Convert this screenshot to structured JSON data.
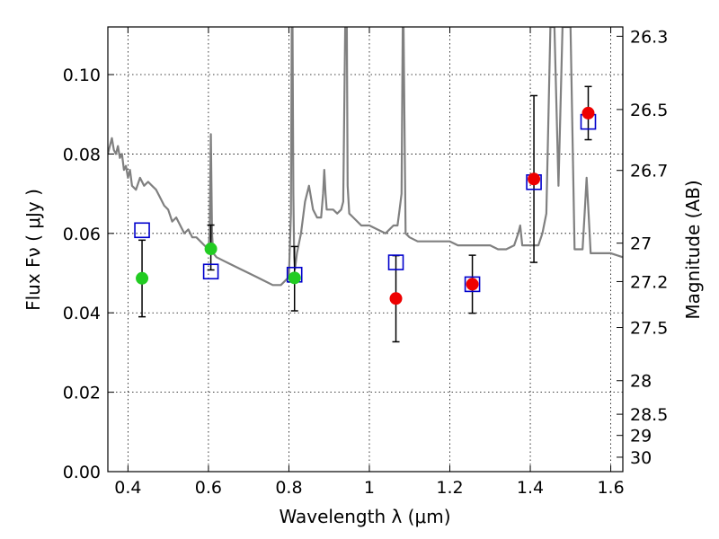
{
  "chart_data": {
    "type": "scatter",
    "xlabel": "Wavelength  λ (μm)",
    "ylabel": "Flux  Fν  ( μJy )",
    "y2label": "Magnitude (AB)",
    "xlim": [
      0.35,
      1.63
    ],
    "ylim": [
      0.0,
      0.112
    ],
    "x_ticks": [
      "0.4",
      "0.6",
      "0.8",
      "1",
      "1.2",
      "1.4",
      "1.6"
    ],
    "x_tick_values": [
      0.4,
      0.6,
      0.8,
      1.0,
      1.2,
      1.4,
      1.6
    ],
    "y_ticks": [
      "0.00",
      "0.02",
      "0.04",
      "0.06",
      "0.08",
      "0.10"
    ],
    "y_tick_values": [
      0.0,
      0.02,
      0.04,
      0.06,
      0.08,
      0.1
    ],
    "mag_ticks": [
      "26.3",
      "26.5",
      "26.7",
      "27",
      "27.2",
      "27.5",
      "28",
      "28.5",
      "29",
      "30"
    ],
    "mag_values": [
      26.3,
      26.5,
      26.7,
      27.0,
      27.2,
      27.5,
      28.0,
      28.5,
      29.0,
      30.0
    ],
    "grid": true,
    "colors": {
      "green": "#22cc22",
      "red": "#ee0000",
      "blue": "#0000cc",
      "spectrum": "#808080"
    },
    "points_green": [
      {
        "x": 0.435,
        "y": 0.0487,
        "lo": 0.039,
        "hi": 0.0583
      },
      {
        "x": 0.606,
        "y": 0.0561,
        "lo": 0.0508,
        "hi": 0.0621
      },
      {
        "x": 0.814,
        "y": 0.0488,
        "lo": 0.0405,
        "hi": 0.0567
      }
    ],
    "points_red": [
      {
        "x": 1.066,
        "y": 0.0436,
        "lo": 0.0327,
        "hi": 0.0544
      },
      {
        "x": 1.256,
        "y": 0.0472,
        "lo": 0.0399,
        "hi": 0.0545
      },
      {
        "x": 1.409,
        "y": 0.0737,
        "lo": 0.0527,
        "hi": 0.0947
      },
      {
        "x": 1.544,
        "y": 0.0903,
        "lo": 0.0836,
        "hi": 0.097
      }
    ],
    "model_squares": [
      {
        "x": 0.435,
        "y": 0.0608
      },
      {
        "x": 0.606,
        "y": 0.0504
      },
      {
        "x": 0.814,
        "y": 0.0496
      },
      {
        "x": 1.066,
        "y": 0.0527
      },
      {
        "x": 1.256,
        "y": 0.0472
      },
      {
        "x": 1.409,
        "y": 0.0729
      },
      {
        "x": 1.544,
        "y": 0.0881
      }
    ],
    "spectrum": {
      "x": [
        0.35,
        0.355,
        0.36,
        0.365,
        0.37,
        0.375,
        0.38,
        0.385,
        0.39,
        0.395,
        0.4,
        0.405,
        0.41,
        0.42,
        0.43,
        0.44,
        0.45,
        0.46,
        0.47,
        0.48,
        0.49,
        0.5,
        0.51,
        0.52,
        0.53,
        0.54,
        0.55,
        0.56,
        0.57,
        0.58,
        0.59,
        0.6,
        0.603,
        0.606,
        0.609,
        0.612,
        0.62,
        0.64,
        0.66,
        0.68,
        0.7,
        0.72,
        0.74,
        0.76,
        0.78,
        0.8,
        0.805,
        0.807,
        0.809,
        0.811,
        0.813,
        0.815,
        0.82,
        0.83,
        0.84,
        0.85,
        0.86,
        0.87,
        0.88,
        0.885,
        0.888,
        0.891,
        0.894,
        0.9,
        0.91,
        0.92,
        0.93,
        0.935,
        0.94,
        0.942,
        0.944,
        0.946,
        0.95,
        0.96,
        0.98,
        1.0,
        1.02,
        1.04,
        1.06,
        1.07,
        1.075,
        1.08,
        1.083,
        1.085,
        1.088,
        1.09,
        1.1,
        1.12,
        1.14,
        1.16,
        1.18,
        1.2,
        1.22,
        1.24,
        1.25,
        1.26,
        1.27,
        1.28,
        1.3,
        1.32,
        1.34,
        1.36,
        1.37,
        1.375,
        1.38,
        1.4,
        1.42,
        1.43,
        1.44,
        1.45,
        1.46,
        1.47,
        1.48,
        1.49,
        1.5,
        1.51,
        1.52,
        1.53,
        1.535,
        1.54,
        1.545,
        1.55,
        1.56,
        1.58,
        1.6,
        1.63
      ],
      "y": [
        0.08,
        0.082,
        0.084,
        0.081,
        0.08,
        0.082,
        0.079,
        0.08,
        0.076,
        0.077,
        0.074,
        0.076,
        0.072,
        0.071,
        0.074,
        0.072,
        0.073,
        0.072,
        0.071,
        0.069,
        0.067,
        0.066,
        0.063,
        0.064,
        0.062,
        0.06,
        0.061,
        0.059,
        0.059,
        0.058,
        0.057,
        0.056,
        0.06,
        0.085,
        0.06,
        0.055,
        0.054,
        0.053,
        0.052,
        0.051,
        0.05,
        0.049,
        0.048,
        0.047,
        0.047,
        0.049,
        0.065,
        0.112,
        0.112,
        0.07,
        0.054,
        0.051,
        0.055,
        0.06,
        0.068,
        0.072,
        0.066,
        0.064,
        0.064,
        0.07,
        0.076,
        0.07,
        0.066,
        0.066,
        0.066,
        0.065,
        0.066,
        0.068,
        0.112,
        0.112,
        0.112,
        0.072,
        0.065,
        0.064,
        0.062,
        0.062,
        0.061,
        0.06,
        0.062,
        0.062,
        0.066,
        0.07,
        0.112,
        0.112,
        0.08,
        0.06,
        0.059,
        0.058,
        0.058,
        0.058,
        0.058,
        0.058,
        0.057,
        0.057,
        0.057,
        0.057,
        0.057,
        0.057,
        0.057,
        0.056,
        0.056,
        0.057,
        0.06,
        0.062,
        0.057,
        0.057,
        0.057,
        0.06,
        0.065,
        0.112,
        0.112,
        0.072,
        0.112,
        0.112,
        0.112,
        0.056,
        0.056,
        0.056,
        0.065,
        0.074,
        0.065,
        0.055,
        0.055,
        0.055,
        0.055,
        0.054
      ]
    }
  }
}
